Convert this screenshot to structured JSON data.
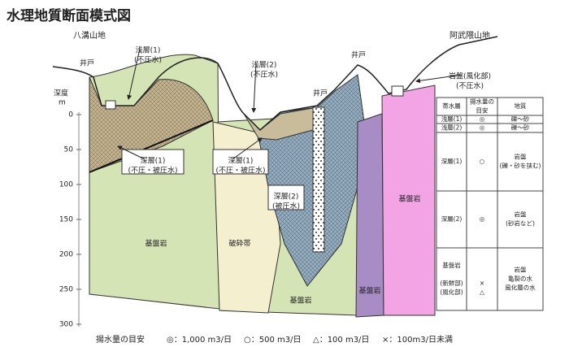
{
  "title": "水理地質断面模式図",
  "mountains": {
    "left": "八溝山地",
    "right": "阿武隈山地"
  },
  "wells": [
    "井戸",
    "井戸",
    "井戸"
  ],
  "depth_axis": {
    "title": "深度",
    "unit": "m",
    "ticks": [
      0,
      50,
      100,
      150,
      200,
      250,
      300
    ]
  },
  "callouts": {
    "shallow1": [
      "浅層(1)",
      "(不圧水)"
    ],
    "shallow2": [
      "浅層(2)",
      "(不圧水)"
    ],
    "weathered": [
      "岩盤(風化部)",
      "(不圧水)"
    ],
    "deep1_left": [
      "深層(1)",
      "(不圧・被圧水)"
    ],
    "deep1_mid": [
      "深層(1)",
      "(不圧・被圧水)"
    ],
    "deep2": [
      "深層(2)",
      "(被圧水)"
    ]
  },
  "zones": {
    "bedrock_left": "基盤岩",
    "fracture": "破砕帯",
    "bedrock_mid": "基盤岩",
    "bedrock_purple": "基盤岩",
    "bedrock_pink": "基盤岩"
  },
  "table": {
    "header": [
      [
        "帯水層"
      ],
      [
        "揚水量の",
        "目安"
      ],
      [
        "地質"
      ]
    ],
    "rows": [
      [
        [
          "浅層(1)"
        ],
        [
          "◎"
        ],
        [
          "礫～砂"
        ]
      ],
      [
        [
          "浅層(2)"
        ],
        [
          "◎"
        ],
        [
          "礫～砂"
        ]
      ],
      [
        [
          "深層(1)"
        ],
        [
          "○"
        ],
        [
          "岩盤",
          "(礫・砂を挟む)"
        ]
      ],
      [
        [
          "深層(2)"
        ],
        [
          "◎"
        ],
        [
          "岩盤",
          "(砂岩など)"
        ]
      ],
      [
        [
          "基盤岩",
          "",
          "(新鮮部)",
          "(風化部)"
        ],
        [
          "",
          "",
          "×",
          "△"
        ],
        [
          "岩盤",
          "亀裂の水",
          "風化層の水"
        ]
      ]
    ]
  },
  "footer": {
    "title": "揚水量の目安",
    "items": [
      "◎：1,000 m3/日",
      "○：500 m3/日",
      "△：100 m3/日",
      "×：100m3/日未満"
    ]
  }
}
